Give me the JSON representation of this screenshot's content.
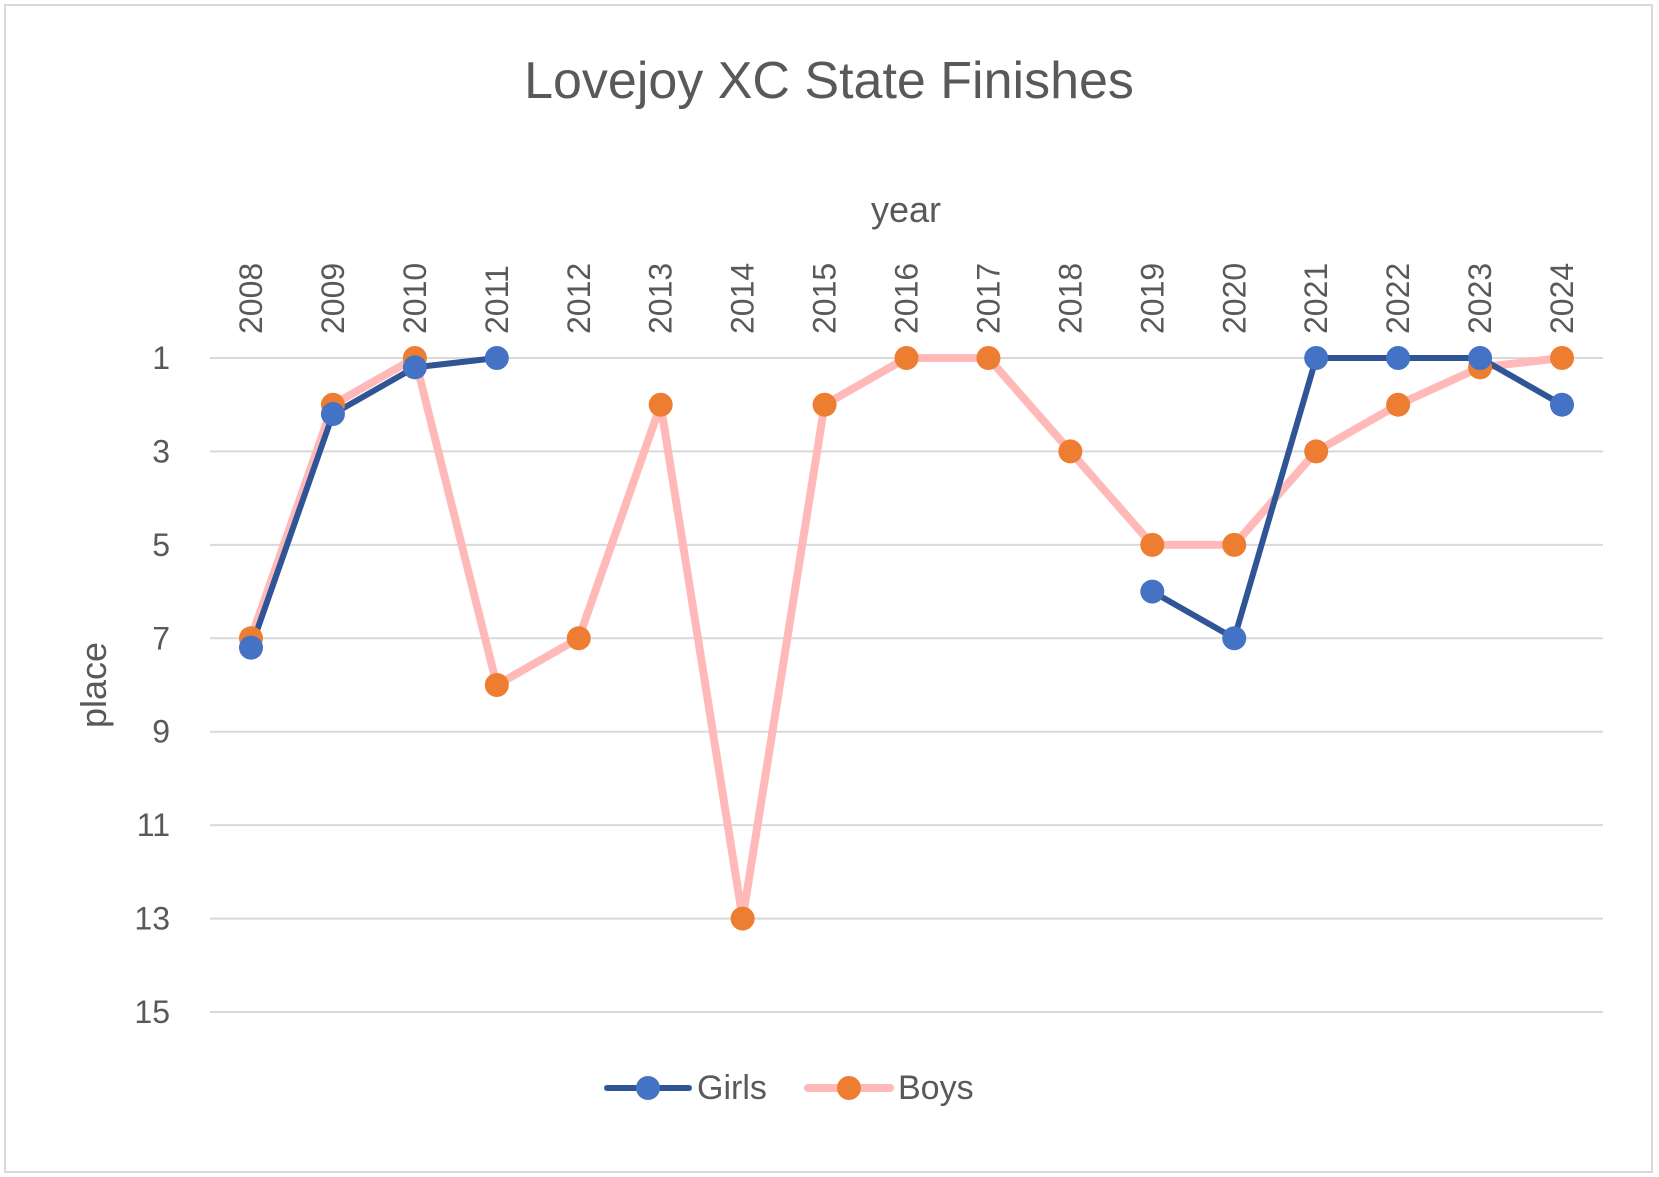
{
  "chart_data": {
    "type": "line",
    "title": "Lovejoy XC State Finishes",
    "xlabel": "year",
    "ylabel": "place",
    "x_axis_position": "top",
    "y_reversed": true,
    "ylim": [
      1,
      15
    ],
    "yticks": [
      1,
      3,
      5,
      7,
      9,
      11,
      13,
      15
    ],
    "categories": [
      "2008",
      "2009",
      "2010",
      "2011",
      "2012",
      "2013",
      "2014",
      "2015",
      "2016",
      "2017",
      "2018",
      "2019",
      "2020",
      "2021",
      "2022",
      "2023",
      "2024"
    ],
    "series": [
      {
        "name": "Girls",
        "color": "#2F5597",
        "marker_color": "#4472C4",
        "values": [
          7.2,
          2.2,
          1.2,
          1,
          null,
          null,
          null,
          null,
          null,
          null,
          null,
          6,
          7,
          1,
          1,
          1,
          2
        ]
      },
      {
        "name": "Boys",
        "color": "#FFB9B9",
        "marker_color": "#ED7D31",
        "values": [
          7,
          2,
          1,
          8,
          7,
          2,
          13,
          2,
          1,
          1,
          3,
          5,
          5,
          3,
          2,
          1.2,
          1
        ]
      }
    ],
    "grid": true,
    "legend_position": "bottom"
  }
}
